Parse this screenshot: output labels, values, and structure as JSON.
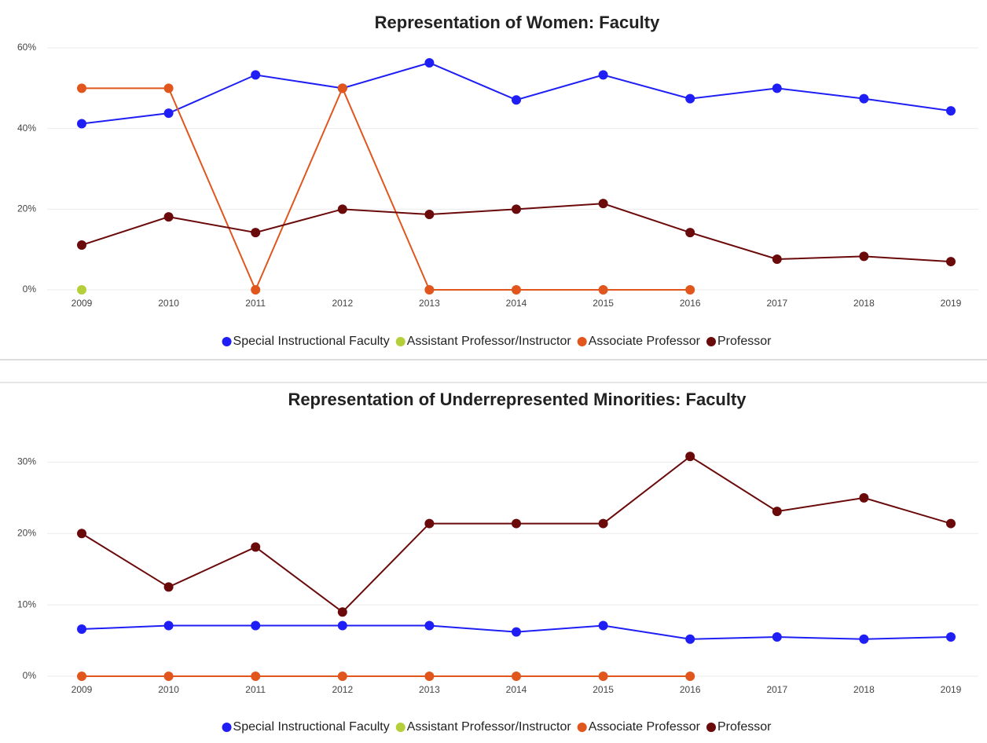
{
  "chart_data": [
    {
      "type": "line",
      "title": "Representation of Women: Faculty",
      "categories": [
        "2009",
        "2010",
        "2011",
        "2012",
        "2013",
        "2014",
        "2015",
        "2016",
        "2017",
        "2018",
        "2019"
      ],
      "ylim": [
        0,
        60
      ],
      "yticks": [
        {
          "value": 0,
          "label": "0%"
        },
        {
          "value": 20,
          "label": "20%"
        },
        {
          "value": 40,
          "label": "40%"
        },
        {
          "value": 60,
          "label": "60%"
        }
      ],
      "grid": true,
      "series": [
        {
          "name": "Special Instructional Faculty",
          "color": "#1f1ff5",
          "values": [
            41.2,
            43.8,
            53.3,
            50,
            56.3,
            47.1,
            53.3,
            47.4,
            50,
            47.4,
            44.4
          ]
        },
        {
          "name": "Assistant Professor/Instructor",
          "color": "#b5cf3a",
          "values": [
            0,
            null,
            null,
            null,
            null,
            null,
            null,
            null,
            null,
            null,
            null
          ]
        },
        {
          "name": "Associate Professor",
          "color": "#e0561d",
          "values": [
            50,
            50,
            0,
            50,
            0,
            0,
            0,
            0,
            null,
            null,
            null
          ]
        },
        {
          "name": "Professor",
          "color": "#6b0a0a",
          "values": [
            11.1,
            18.1,
            14.2,
            20,
            18.7,
            20,
            21.4,
            14.2,
            7.6,
            8.3,
            7
          ]
        }
      ]
    },
    {
      "type": "line",
      "title": "Representation of Underrepresented Minorities: Faculty",
      "categories": [
        "2009",
        "2010",
        "2011",
        "2012",
        "2013",
        "2014",
        "2015",
        "2016",
        "2017",
        "2018",
        "2019"
      ],
      "ylim": [
        0,
        35
      ],
      "yticks": [
        {
          "value": 0,
          "label": "0%"
        },
        {
          "value": 10,
          "label": "10%"
        },
        {
          "value": 20,
          "label": "20%"
        },
        {
          "value": 30,
          "label": "30%"
        }
      ],
      "grid": true,
      "series": [
        {
          "name": "Special Instructional Faculty",
          "color": "#1f1ff5",
          "values": [
            6.6,
            7.1,
            7.1,
            7.1,
            7.1,
            6.2,
            7.1,
            5.2,
            5.5,
            5.2,
            5.5
          ]
        },
        {
          "name": "Assistant Professor/Instructor",
          "color": "#b5cf3a",
          "values": [
            null,
            null,
            null,
            null,
            null,
            null,
            null,
            null,
            null,
            null,
            null
          ]
        },
        {
          "name": "Associate Professor",
          "color": "#e0561d",
          "values": [
            0,
            0,
            0,
            0,
            0,
            0,
            0,
            0,
            null,
            null,
            null
          ]
        },
        {
          "name": "Professor",
          "color": "#6b0a0a",
          "values": [
            20,
            12.5,
            18.1,
            9,
            21.4,
            21.4,
            21.4,
            30.8,
            23.1,
            25,
            21.4
          ]
        }
      ]
    }
  ]
}
